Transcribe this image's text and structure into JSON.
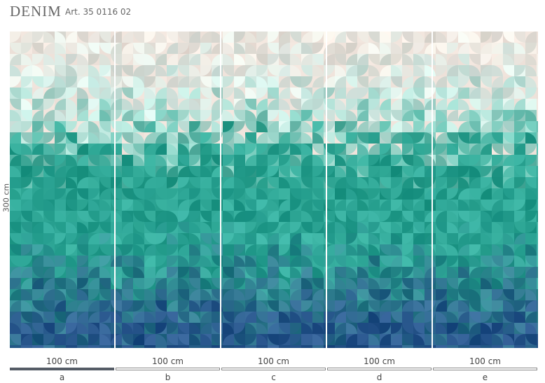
{
  "header": {
    "title": "DENIM",
    "article": "Art. 35 0116 02"
  },
  "height_label": "300 cm",
  "panels": [
    {
      "width": "100 cm",
      "label": "a"
    },
    {
      "width": "100 cm",
      "label": "b"
    },
    {
      "width": "100 cm",
      "label": "c"
    },
    {
      "width": "100 cm",
      "label": "d"
    },
    {
      "width": "100 cm",
      "label": "e"
    }
  ]
}
